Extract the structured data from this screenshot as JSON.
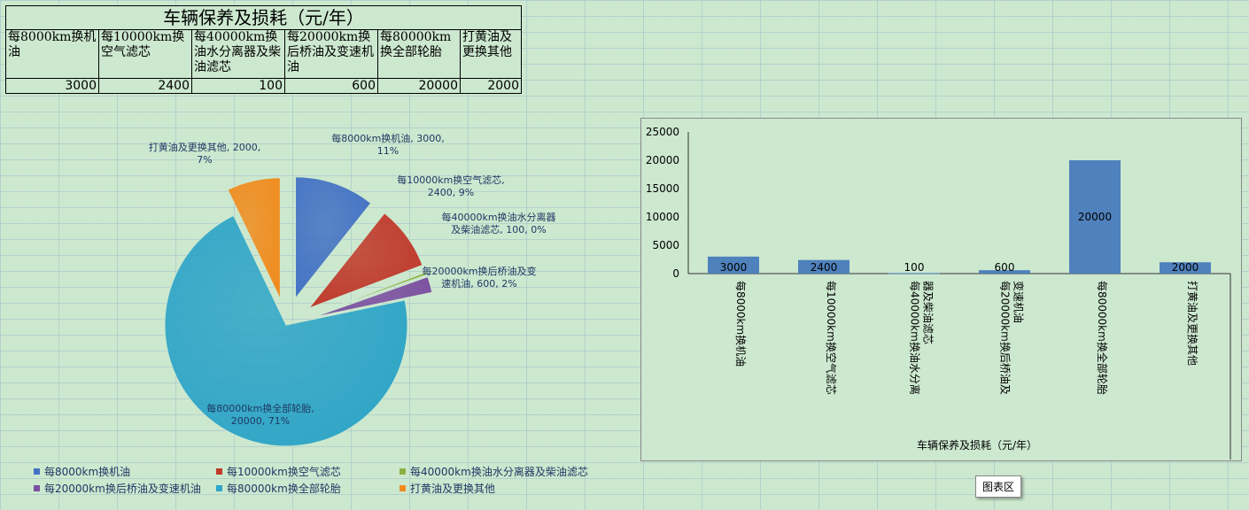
{
  "sheet": {
    "title": "车辆保养及损耗（元/年）",
    "headers": [
      "每8000km换机油",
      "每10000km换空气滤芯",
      "每40000km换油水分离器及柴油滤芯",
      "每20000km换后桥油及变速机油",
      "每80000km换全部轮胎",
      "打黄油及更换其他"
    ],
    "values": [
      "3000",
      "2400",
      "100",
      "600",
      "20000",
      "2000"
    ]
  },
  "chart_data": [
    {
      "type": "pie",
      "title": "",
      "categories": [
        "每8000km换机油",
        "每10000km换空气滤芯",
        "每40000km换油水分离器及柴油滤芯",
        "每20000km换后桥油及变速机油",
        "每80000km换全部轮胎",
        "打黄油及更换其他"
      ],
      "values": [
        3000,
        2400,
        100,
        600,
        20000,
        2000
      ],
      "colors": [
        "#4472c4",
        "#c0392b",
        "#8db040",
        "#7b4fa0",
        "#2fa5c7",
        "#f08c1e"
      ],
      "data_labels": [
        [
          "每8000km换机油, 3000,",
          "11%"
        ],
        [
          "每10000km换空气滤芯,",
          "2400, 9%"
        ],
        [
          "每40000km换油水分离器",
          "及柴油滤芯, 100, 0%"
        ],
        [
          "每20000km换后桥油及变",
          "速机油, 600, 2%"
        ],
        [
          "每80000km换全部轮胎,",
          "20000, 71%"
        ],
        [
          "打黄油及更换其他, 2000,",
          "7%"
        ]
      ],
      "legend_position": "bottom",
      "exploded": true
    },
    {
      "type": "bar",
      "title": "",
      "xlabel": "车辆保养及损耗（元/年）",
      "ylabel": "",
      "categories": [
        "每8000km换机油",
        "每10000km换空气滤芯",
        "每40000km换油水分离器及柴油滤芯",
        "每20000km换后桥油及变速机油",
        "每80000km换全部轮胎",
        "打黄油及更换其他"
      ],
      "values": [
        3000,
        2400,
        100,
        600,
        20000,
        2000
      ],
      "ylim": [
        0,
        25000
      ],
      "yticks": [
        "0",
        "5000",
        "10000",
        "15000",
        "20000",
        "25000"
      ],
      "bar_color": "#4f81bd",
      "data_labels": true,
      "grid": false
    }
  ],
  "chart_tip": "图表区"
}
